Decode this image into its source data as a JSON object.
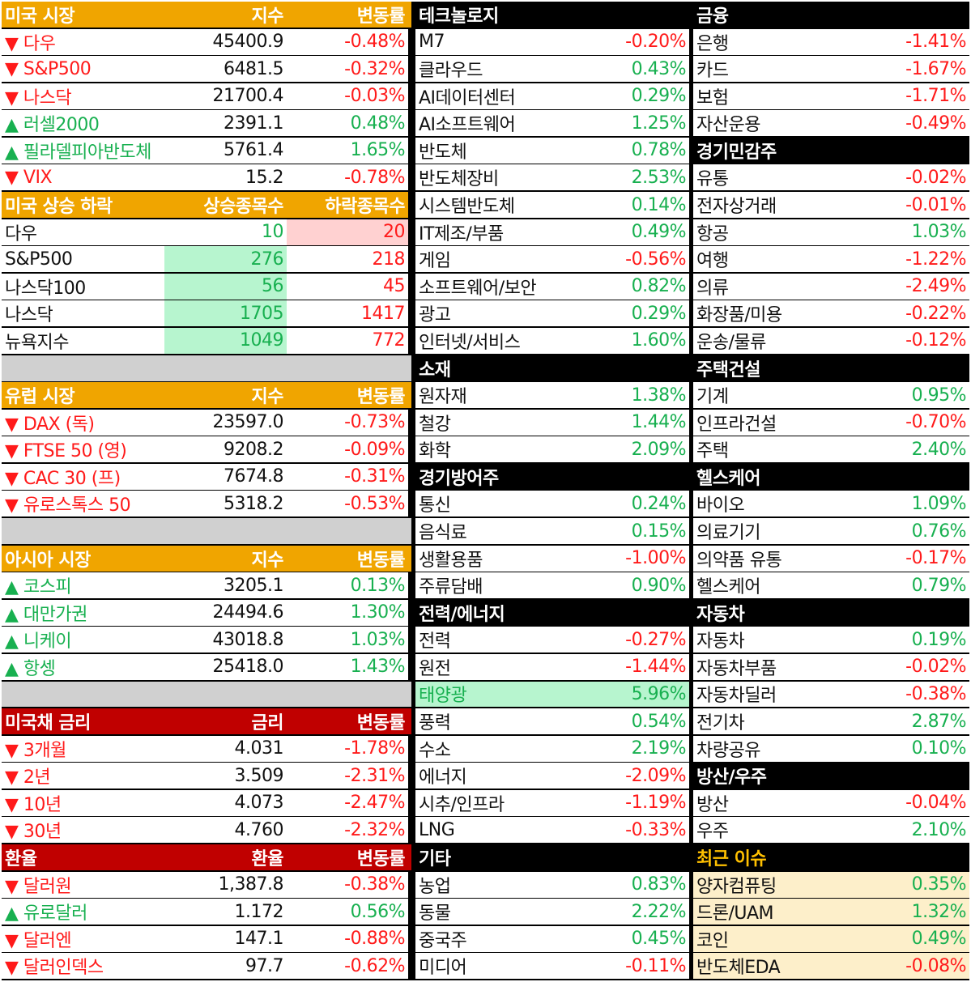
{
  "us_market": {
    "header": [
      "미국 시장",
      "지수",
      "변동률"
    ],
    "rows": [
      {
        "name": "▼ 다우",
        "value": "45400.9",
        "change": "-0.48%",
        "dir": "down"
      },
      {
        "name": "▼ S&P500",
        "value": "6481.5",
        "change": "-0.32%",
        "dir": "down"
      },
      {
        "name": "▼ 나스닥",
        "value": "21700.4",
        "change": "-0.03%",
        "dir": "down"
      },
      {
        "name": "▲ 러셀2000",
        "value": "2391.1",
        "change": "0.48%",
        "dir": "up"
      },
      {
        "name": "▲ 필라델피아반도체",
        "value": "5761.4",
        "change": "1.65%",
        "dir": "up"
      },
      {
        "name": "▼ VIX",
        "value": "15.2",
        "change": "-0.78%",
        "dir": "down"
      }
    ]
  },
  "us_breadth": {
    "header": [
      "미국 상승 하락",
      "상승종목수",
      "하락종목수"
    ],
    "rows": [
      {
        "name": "다우",
        "up": "10",
        "down": "20"
      },
      {
        "name": "S&P500",
        "up": "276",
        "down": "218"
      },
      {
        "name": "나스닥100",
        "up": "56",
        "down": "45"
      },
      {
        "name": "나스닥",
        "up": "1705",
        "down": "1417"
      },
      {
        "name": "뉴욕지수",
        "up": "1049",
        "down": "772"
      }
    ]
  },
  "europe_market": {
    "header": [
      "유럽 시장",
      "지수",
      "변동률"
    ],
    "rows": [
      {
        "name": "▼ DAX (독)",
        "value": "23597.0",
        "change": "-0.73%",
        "dir": "down"
      },
      {
        "name": "▼ FTSE 50 (영)",
        "value": "9208.2",
        "change": "-0.09%",
        "dir": "down"
      },
      {
        "name": "▼ CAC 30 (프)",
        "value": "7674.8",
        "change": "-0.31%",
        "dir": "down"
      },
      {
        "name": "▼ 유로스톡스 50",
        "value": "5318.2",
        "change": "-0.53%",
        "dir": "down"
      }
    ]
  },
  "asia_market": {
    "header": [
      "아시아 시장",
      "지수",
      "변동률"
    ],
    "rows": [
      {
        "name": "▲ 코스피",
        "value": "3205.1",
        "change": "0.13%",
        "dir": "up"
      },
      {
        "name": "▲ 대만가권",
        "value": "24494.6",
        "change": "1.30%",
        "dir": "up"
      },
      {
        "name": "▲ 니케이",
        "value": "43018.8",
        "change": "1.03%",
        "dir": "up"
      },
      {
        "name": "▲ 항셍",
        "value": "25418.0",
        "change": "1.43%",
        "dir": "up"
      }
    ]
  },
  "us_bonds": {
    "header": [
      "미국채 금리",
      "금리",
      "변동률"
    ],
    "rows": [
      {
        "name": "▼ 3개월",
        "value": "4.031",
        "change": "-1.78%",
        "dir": "down"
      },
      {
        "name": "▼ 2년",
        "value": "3.509",
        "change": "-2.31%",
        "dir": "down"
      },
      {
        "name": "▼ 10년",
        "value": "4.073",
        "change": "-2.47%",
        "dir": "down"
      },
      {
        "name": "▼ 30년",
        "value": "4.760",
        "change": "-2.32%",
        "dir": "down"
      }
    ]
  },
  "fx": {
    "header": [
      "환율",
      "환율",
      "변동률"
    ],
    "rows": [
      {
        "name": "▼ 달러원",
        "value": "1,387.8",
        "change": "-0.38%",
        "dir": "down"
      },
      {
        "name": "▲ 유로달러",
        "value": "1.172",
        "change": "0.56%",
        "dir": "up"
      },
      {
        "name": "▼ 달러엔",
        "value": "147.1",
        "change": "-0.88%",
        "dir": "down"
      },
      {
        "name": "▼ 달러인덱스",
        "value": "97.7",
        "change": "-0.62%",
        "dir": "down"
      }
    ]
  },
  "sector_col2": [
    {
      "title": "테크놀로지",
      "rows": [
        {
          "name": "M7",
          "change": "-0.20%",
          "dir": "down"
        },
        {
          "name": "클라우드",
          "change": "0.43%",
          "dir": "up"
        },
        {
          "name": "AI데이터센터",
          "change": "0.29%",
          "dir": "up"
        },
        {
          "name": "AI소프트웨어",
          "change": "1.25%",
          "dir": "up"
        },
        {
          "name": "반도체",
          "change": "0.78%",
          "dir": "up"
        },
        {
          "name": "반도체장비",
          "change": "2.53%",
          "dir": "up"
        },
        {
          "name": "시스템반도체",
          "change": "0.14%",
          "dir": "up"
        },
        {
          "name": "IT제조/부품",
          "change": "0.49%",
          "dir": "up"
        },
        {
          "name": "게임",
          "change": "-0.56%",
          "dir": "down"
        },
        {
          "name": "소프트웨어/보안",
          "change": "0.82%",
          "dir": "up"
        },
        {
          "name": "광고",
          "change": "0.29%",
          "dir": "up"
        },
        {
          "name": "인터넷/서비스",
          "change": "1.60%",
          "dir": "up"
        }
      ]
    },
    {
      "title": "소재",
      "rows": [
        {
          "name": "원자재",
          "change": "1.38%",
          "dir": "up"
        },
        {
          "name": "철강",
          "change": "1.44%",
          "dir": "up"
        },
        {
          "name": "화학",
          "change": "2.09%",
          "dir": "up"
        }
      ]
    },
    {
      "title": "경기방어주",
      "rows": [
        {
          "name": "통신",
          "change": "0.24%",
          "dir": "up"
        },
        {
          "name": "음식료",
          "change": "0.15%",
          "dir": "up"
        },
        {
          "name": "생활용품",
          "change": "-1.00%",
          "dir": "down"
        },
        {
          "name": "주류담배",
          "change": "0.90%",
          "dir": "up"
        }
      ]
    },
    {
      "title": "전력/에너지",
      "rows": [
        {
          "name": "전력",
          "change": "-0.27%",
          "dir": "down"
        },
        {
          "name": "원전",
          "change": "-1.44%",
          "dir": "down"
        },
        {
          "name": "태양광",
          "change": "5.96%",
          "dir": "up",
          "highlight": "green"
        },
        {
          "name": "풍력",
          "change": "0.54%",
          "dir": "up"
        },
        {
          "name": "수소",
          "change": "2.19%",
          "dir": "up"
        },
        {
          "name": "에너지",
          "change": "-2.09%",
          "dir": "down"
        },
        {
          "name": "시추/인프라",
          "change": "-1.19%",
          "dir": "down"
        },
        {
          "name": "LNG",
          "change": "-0.33%",
          "dir": "down"
        }
      ]
    },
    {
      "title": "기타",
      "rows": [
        {
          "name": "농업",
          "change": "0.83%",
          "dir": "up"
        },
        {
          "name": "동물",
          "change": "2.22%",
          "dir": "up"
        },
        {
          "name": "중국주",
          "change": "0.45%",
          "dir": "up"
        },
        {
          "name": "미디어",
          "change": "-0.11%",
          "dir": "down"
        }
      ]
    }
  ],
  "sector_col3": [
    {
      "title": "금융",
      "rows": [
        {
          "name": "은행",
          "change": "-1.41%",
          "dir": "down"
        },
        {
          "name": "카드",
          "change": "-1.67%",
          "dir": "down"
        },
        {
          "name": "보험",
          "change": "-1.71%",
          "dir": "down"
        },
        {
          "name": "자산운용",
          "change": "-0.49%",
          "dir": "down"
        }
      ]
    },
    {
      "title": "경기민감주",
      "rows": [
        {
          "name": "유통",
          "change": "-0.02%",
          "dir": "down"
        },
        {
          "name": "전자상거래",
          "change": "-0.01%",
          "dir": "down"
        },
        {
          "name": "항공",
          "change": "1.03%",
          "dir": "up"
        },
        {
          "name": "여행",
          "change": "-1.22%",
          "dir": "down"
        },
        {
          "name": "의류",
          "change": "-2.49%",
          "dir": "down"
        },
        {
          "name": "화장품/미용",
          "change": "-0.22%",
          "dir": "down"
        },
        {
          "name": "운송/물류",
          "change": "-0.12%",
          "dir": "down"
        }
      ]
    },
    {
      "title": "주택건설",
      "rows": [
        {
          "name": "기계",
          "change": "0.95%",
          "dir": "up"
        },
        {
          "name": "인프라건설",
          "change": "-0.70%",
          "dir": "down"
        },
        {
          "name": "주택",
          "change": "2.40%",
          "dir": "up"
        }
      ]
    },
    {
      "title": "헬스케어",
      "rows": [
        {
          "name": "바이오",
          "change": "1.09%",
          "dir": "up"
        },
        {
          "name": "의료기기",
          "change": "0.76%",
          "dir": "up"
        },
        {
          "name": "의약품 유통",
          "change": "-0.17%",
          "dir": "down"
        },
        {
          "name": "헬스케어",
          "change": "0.79%",
          "dir": "up"
        }
      ]
    },
    {
      "title": "자동차",
      "rows": [
        {
          "name": "자동차",
          "change": "0.19%",
          "dir": "up"
        },
        {
          "name": "자동차부품",
          "change": "-0.02%",
          "dir": "down"
        },
        {
          "name": "자동차딜러",
          "change": "-0.38%",
          "dir": "down"
        },
        {
          "name": "전기차",
          "change": "2.87%",
          "dir": "up"
        },
        {
          "name": "차량공유",
          "change": "0.10%",
          "dir": "up"
        }
      ]
    },
    {
      "title": "방산/우주",
      "rows": [
        {
          "name": "방산",
          "change": "-0.04%",
          "dir": "down"
        },
        {
          "name": "우주",
          "change": "2.10%",
          "dir": "up"
        }
      ]
    },
    {
      "title": "최근 이슈",
      "gold": true,
      "rows": [
        {
          "name": "양자컴퓨팅",
          "change": "0.35%",
          "dir": "up",
          "highlight": "cream"
        },
        {
          "name": "드론/UAM",
          "change": "1.32%",
          "dir": "up",
          "highlight": "cream"
        },
        {
          "name": "코인",
          "change": "0.49%",
          "dir": "up",
          "highlight": "cream"
        },
        {
          "name": "반도체EDA",
          "change": "-0.08%",
          "dir": "down",
          "highlight": "cream"
        }
      ]
    }
  ],
  "colors": {
    "up": "#18b050",
    "down": "#ff1a1a",
    "header_orange": "#f0a500",
    "header_red": "#c00000",
    "header_black": "#000000",
    "gold": "#ffc000"
  }
}
